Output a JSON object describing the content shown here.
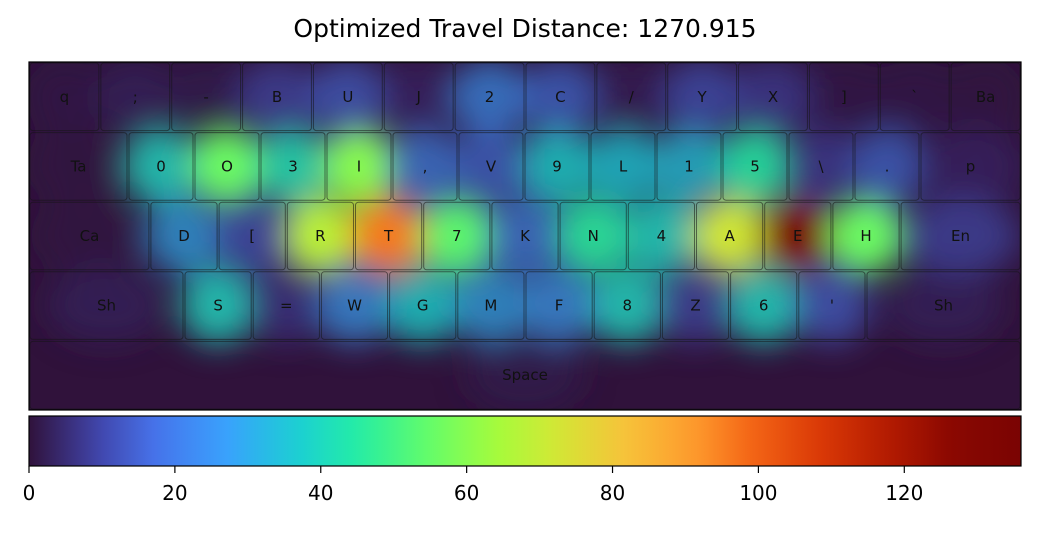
{
  "chart_data": {
    "type": "heatmap",
    "title": "Optimized Travel Distance: 1270.915",
    "colormap": "turbo",
    "colorbar": {
      "min": 0,
      "max": 136,
      "ticks": [
        0,
        20,
        40,
        60,
        80,
        100,
        120
      ]
    },
    "rows": [
      {
        "keys": [
          {
            "label": "q",
            "value": 2
          },
          {
            "label": ";",
            "value": 5
          },
          {
            "label": "-",
            "value": 3
          },
          {
            "label": "B",
            "value": 14
          },
          {
            "label": "U",
            "value": 18
          },
          {
            "label": "J",
            "value": 6
          },
          {
            "label": "2",
            "value": 26
          },
          {
            "label": "C",
            "value": 20
          },
          {
            "label": "/",
            "value": 4
          },
          {
            "label": "Y",
            "value": 16
          },
          {
            "label": "X",
            "value": 12
          },
          {
            "label": "]",
            "value": 2
          },
          {
            "label": "`",
            "value": 2
          },
          {
            "label": "Ba",
            "value": 1
          }
        ]
      },
      {
        "keys": [
          {
            "label": "Ta",
            "value": 1
          },
          {
            "label": "0",
            "value": 40
          },
          {
            "label": "O",
            "value": 56
          },
          {
            "label": "3",
            "value": 42
          },
          {
            "label": "I",
            "value": 60
          },
          {
            "label": ",",
            "value": 24
          },
          {
            "label": "V",
            "value": 20
          },
          {
            "label": "9",
            "value": 38
          },
          {
            "label": "L",
            "value": 36
          },
          {
            "label": "1",
            "value": 35
          },
          {
            "label": "5",
            "value": 45
          },
          {
            "label": "\\",
            "value": 12
          },
          {
            "label": ".",
            "value": 20
          },
          {
            "label": "p",
            "value": 6
          }
        ]
      },
      {
        "keys": [
          {
            "label": "Ca",
            "value": 1
          },
          {
            "label": "D",
            "value": 30
          },
          {
            "label": "[",
            "value": 16
          },
          {
            "label": "R",
            "value": 68
          },
          {
            "label": "T",
            "value": 96
          },
          {
            "label": "7",
            "value": 54
          },
          {
            "label": "K",
            "value": 24
          },
          {
            "label": "N",
            "value": 46
          },
          {
            "label": "4",
            "value": 40
          },
          {
            "label": "A",
            "value": 72
          },
          {
            "label": "E",
            "value": 136
          },
          {
            "label": "H",
            "value": 56
          },
          {
            "label": "En",
            "value": 14
          }
        ]
      },
      {
        "keys": [
          {
            "label": "Sh",
            "value": 5
          },
          {
            "label": "S",
            "value": 40
          },
          {
            "label": "=",
            "value": 10
          },
          {
            "label": "W",
            "value": 28
          },
          {
            "label": "G",
            "value": 38
          },
          {
            "label": "M",
            "value": 30
          },
          {
            "label": "F",
            "value": 28
          },
          {
            "label": "8",
            "value": 40
          },
          {
            "label": "Z",
            "value": 14
          },
          {
            "label": "6",
            "value": 40
          },
          {
            "label": "'",
            "value": 18
          },
          {
            "label": "Sh",
            "value": 5
          }
        ]
      },
      {
        "keys": [
          {
            "label": "Space",
            "value": 3
          }
        ]
      }
    ]
  }
}
